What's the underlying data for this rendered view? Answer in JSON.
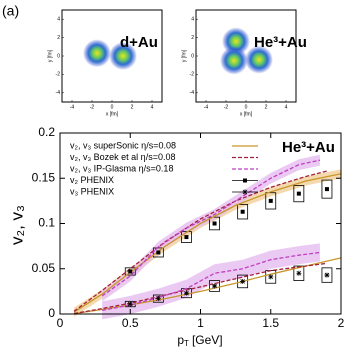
{
  "chart_data": {
    "type": "line",
    "panel_label": "(a)",
    "annotation": "He³+Au",
    "xlabel": {
      "main": "p",
      "sub": "T",
      "unit": "[GeV]"
    },
    "ylabel": "v₂, v₃",
    "xlim": [
      0,
      2
    ],
    "xticks": [
      0,
      0.5,
      1,
      1.5,
      2
    ],
    "ylim": [
      0,
      0.2
    ],
    "yticks": [
      0,
      0.05,
      0.1,
      0.15,
      0.2
    ],
    "models": [
      {
        "name": "v₂, v₃ superSonic η/s=0.08",
        "color": "#c8962a",
        "dash": false,
        "band_color": "#f3cf9a",
        "v2": {
          "x": [
            0.1,
            0.3,
            0.5,
            0.75,
            1,
            1.25,
            1.5,
            1.75,
            2
          ],
          "values": [
            0.002,
            0.022,
            0.046,
            0.075,
            0.1,
            0.12,
            0.135,
            0.147,
            0.155
          ],
          "band": 0.005
        },
        "v3": {
          "x": [
            0.1,
            0.3,
            0.5,
            0.75,
            1,
            1.25,
            1.5,
            1.75,
            2
          ],
          "values": [
            0.0005,
            0.005,
            0.01,
            0.017,
            0.025,
            0.034,
            0.044,
            0.053,
            0.062
          ]
        }
      },
      {
        "name": "v₂, v₃ Bozek et al η/s=0.08",
        "color": "#a3203c",
        "dash": true,
        "v2": {
          "x": [
            0.1,
            0.3,
            0.5,
            0.75,
            1,
            1.25,
            1.5,
            1.75,
            1.9
          ],
          "values": [
            0.003,
            0.026,
            0.05,
            0.08,
            0.105,
            0.125,
            0.14,
            0.152,
            0.158
          ]
        },
        "v3": {
          "x": [
            0.1,
            0.3,
            0.5,
            0.75,
            1,
            1.25,
            1.5,
            1.75,
            1.9
          ],
          "values": [
            0.0005,
            0.006,
            0.012,
            0.021,
            0.03,
            0.039,
            0.048,
            0.053,
            0.056
          ]
        }
      },
      {
        "name": "v₂, v₃ IP-Glasma η/s=0.18",
        "color": "#c13fc1",
        "dash": true,
        "band_color": "#e5bdf0",
        "v2": {
          "x": [
            0.3,
            0.5,
            0.7,
            0.9,
            1.1,
            1.3,
            1.5,
            1.7,
            1.85
          ],
          "values": [
            0.02,
            0.042,
            0.074,
            0.095,
            0.11,
            0.13,
            0.15,
            0.165,
            0.17
          ],
          "band": 0.006
        },
        "v3": {
          "x": [
            0.3,
            0.5,
            0.7,
            0.9,
            1.1,
            1.3,
            1.5,
            1.7,
            1.85
          ],
          "values": [
            0.004,
            0.01,
            0.018,
            0.028,
            0.045,
            0.05,
            0.06,
            0.065,
            0.068
          ],
          "band": 0.01
        }
      }
    ],
    "measurements": [
      {
        "name": "v₂ PHENIX",
        "marker": "square",
        "x": [
          0.5,
          0.7,
          0.9,
          1.1,
          1.3,
          1.5,
          1.7,
          1.9
        ],
        "values": [
          0.047,
          0.068,
          0.085,
          0.1,
          0.113,
          0.125,
          0.133,
          0.138
        ],
        "sys": [
          0.004,
          0.005,
          0.006,
          0.007,
          0.008,
          0.009,
          0.009,
          0.01
        ]
      },
      {
        "name": "v₃ PHENIX",
        "marker": "star",
        "x": [
          0.5,
          0.7,
          0.9,
          1.1,
          1.3,
          1.5,
          1.7,
          1.9
        ],
        "values": [
          0.011,
          0.017,
          0.023,
          0.031,
          0.036,
          0.041,
          0.045,
          0.043
        ],
        "sys": [
          0.003,
          0.004,
          0.005,
          0.006,
          0.007,
          0.007,
          0.008,
          0.008
        ]
      }
    ],
    "insets": [
      {
        "title": "d+Au",
        "xlabel": "x [fm]",
        "ylabel": "y [fm]",
        "xlim": [
          -5,
          5
        ],
        "ylim": [
          -5,
          5
        ],
        "xticks": [
          -4,
          -2,
          0,
          2,
          4
        ],
        "yticks": [
          -4,
          -2,
          0,
          2,
          4
        ],
        "hotspots": {
          "x": [
            -1.5,
            1.1
          ],
          "y": [
            0.3,
            0.0
          ]
        }
      },
      {
        "title": "He³+Au",
        "xlabel": "x [fm]",
        "ylabel": "y [fm]",
        "xlim": [
          -5,
          5
        ],
        "ylim": [
          -5,
          5
        ],
        "xticks": [
          -4,
          -2,
          0,
          2,
          4
        ],
        "yticks": [
          -4,
          -2,
          0,
          2,
          4
        ],
        "hotspots": {
          "x": [
            -1.0,
            -1.2,
            1.3
          ],
          "y": [
            1.6,
            -0.5,
            -0.4
          ]
        }
      }
    ]
  }
}
